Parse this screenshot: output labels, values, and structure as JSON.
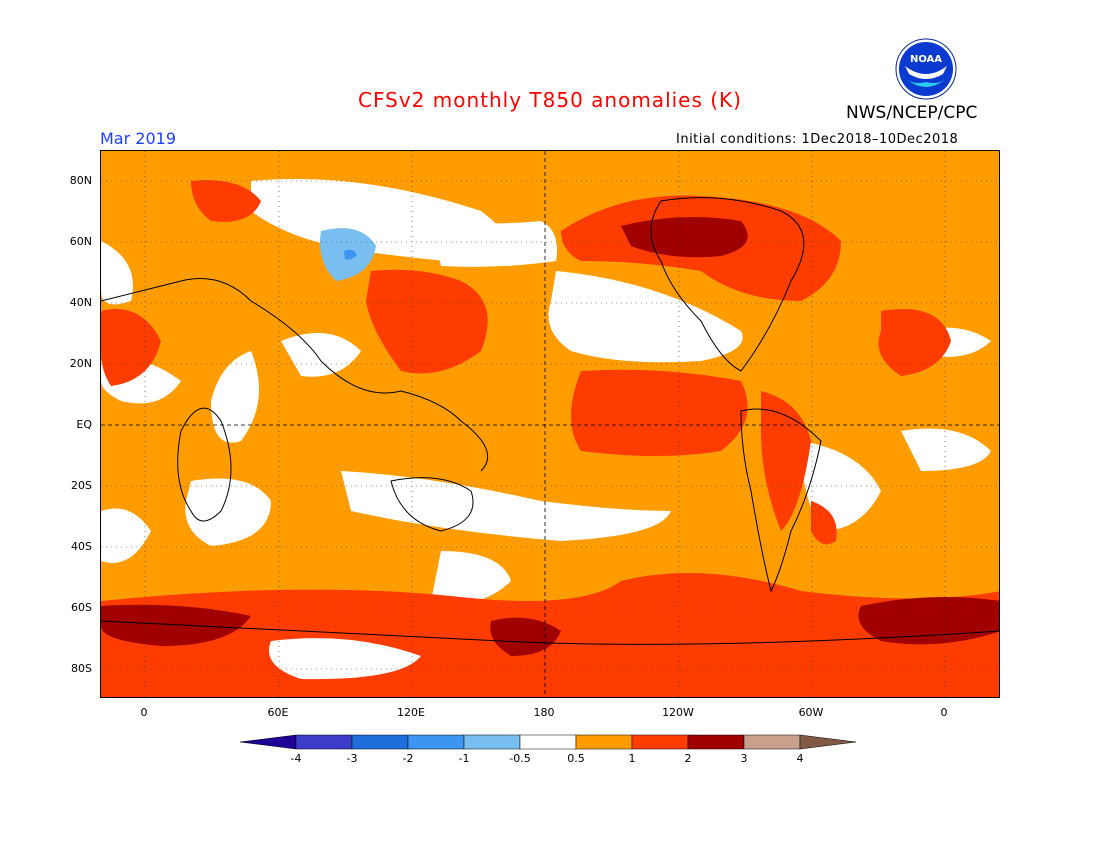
{
  "header": {
    "title": "CFSv2 monthly T850 anomalies (K)",
    "agency": "NWS/NCEP/CPC",
    "logo_text": "NOAA",
    "month": "Mar 2019",
    "initial_conditions": "Initial conditions: 1Dec2018–10Dec2018"
  },
  "axes": {
    "lat_labels": [
      "80N",
      "60N",
      "40N",
      "20N",
      "EQ",
      "20S",
      "40S",
      "60S",
      "80S"
    ],
    "lon_labels": [
      "0",
      "60E",
      "120E",
      "180",
      "120W",
      "60W",
      "0"
    ]
  },
  "colorbar": {
    "labels": [
      "-4",
      "-3",
      "-2",
      "-1",
      "-0.5",
      "0.5",
      "1",
      "2",
      "3",
      "4"
    ],
    "colors": [
      "#1e0096",
      "#3c3cc8",
      "#1e6edc",
      "#3c96f0",
      "#78bef0",
      "#ffffff",
      "#ff9d00",
      "#ff3c00",
      "#a00000",
      "#c8a08c",
      "#825a46"
    ]
  },
  "palette": {
    "ocean_base": "#ff9d00",
    "neutral": "#ffffff",
    "warm_1_2": "#ff3c00",
    "warm_2_3": "#a00000",
    "cool_05_1": "#78bef0",
    "cool_1_2": "#3c96f0",
    "brand_blue": "#1e40ff",
    "title_red": "#ff0000"
  }
}
